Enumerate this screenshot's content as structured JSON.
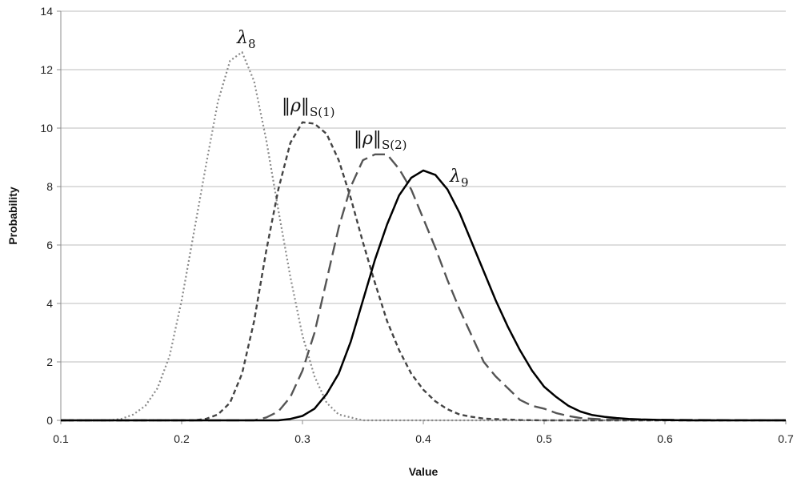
{
  "chart_data": {
    "type": "line",
    "title": "",
    "xlabel": "Value",
    "ylabel": "Probability",
    "xlim": [
      0.1,
      0.7
    ],
    "ylim": [
      0,
      14
    ],
    "x_ticks": [
      "0.1",
      "0.2",
      "0.3",
      "0.4",
      "0.5",
      "0.6",
      "0.7"
    ],
    "y_ticks": [
      "0",
      "2",
      "4",
      "6",
      "8",
      "10",
      "12",
      "14"
    ],
    "grid": "horizontal",
    "legend": "none",
    "series": [
      {
        "name": "λ8",
        "label_main": "λ",
        "label_sub": "8",
        "style": "dotted",
        "color": "#8a8a8a",
        "x": [
          0.1,
          0.14,
          0.15,
          0.16,
          0.17,
          0.18,
          0.19,
          0.2,
          0.21,
          0.22,
          0.23,
          0.24,
          0.25,
          0.26,
          0.27,
          0.28,
          0.29,
          0.3,
          0.31,
          0.32,
          0.33,
          0.35,
          0.7
        ],
        "y": [
          0,
          0,
          0.05,
          0.2,
          0.5,
          1.1,
          2.2,
          4.1,
          6.4,
          8.7,
          10.9,
          12.3,
          12.6,
          11.6,
          9.6,
          7.2,
          4.9,
          2.9,
          1.5,
          0.6,
          0.2,
          0,
          0
        ]
      },
      {
        "name": "‖ρ‖S(1)",
        "label_main": "‖ρ‖",
        "label_sub": "S(1)",
        "style": "short-dash",
        "color": "#444444",
        "x": [
          0.1,
          0.21,
          0.22,
          0.23,
          0.24,
          0.25,
          0.26,
          0.27,
          0.28,
          0.29,
          0.3,
          0.31,
          0.32,
          0.33,
          0.34,
          0.35,
          0.36,
          0.37,
          0.38,
          0.39,
          0.4,
          0.41,
          0.42,
          0.43,
          0.44,
          0.45,
          0.46,
          0.47,
          0.48,
          0.5,
          0.7
        ],
        "y": [
          0,
          0,
          0.05,
          0.2,
          0.6,
          1.6,
          3.4,
          5.8,
          7.9,
          9.5,
          10.2,
          10.15,
          9.8,
          8.9,
          7.6,
          6.1,
          4.7,
          3.4,
          2.4,
          1.6,
          1.05,
          0.65,
          0.38,
          0.2,
          0.12,
          0.06,
          0.04,
          0.03,
          0.01,
          0,
          0
        ]
      },
      {
        "name": "‖ρ‖S(2)",
        "label_main": "‖ρ‖",
        "label_sub": "S(2)",
        "style": "long-dash",
        "color": "#555555",
        "x": [
          0.1,
          0.26,
          0.27,
          0.28,
          0.29,
          0.3,
          0.31,
          0.32,
          0.33,
          0.34,
          0.35,
          0.36,
          0.37,
          0.38,
          0.39,
          0.4,
          0.41,
          0.42,
          0.43,
          0.44,
          0.45,
          0.46,
          0.47,
          0.48,
          0.49,
          0.5,
          0.51,
          0.52,
          0.53,
          0.55,
          0.7
        ],
        "y": [
          0,
          0,
          0.1,
          0.3,
          0.8,
          1.7,
          3.0,
          4.8,
          6.6,
          8.0,
          8.9,
          9.1,
          9.1,
          8.6,
          7.9,
          6.9,
          5.9,
          4.8,
          3.8,
          2.9,
          2.0,
          1.5,
          1.1,
          0.7,
          0.5,
          0.4,
          0.25,
          0.15,
          0.08,
          0.03,
          0
        ]
      },
      {
        "name": "λ9",
        "label_main": "λ",
        "label_sub": "9",
        "style": "solid",
        "color": "#000000",
        "x": [
          0.1,
          0.28,
          0.29,
          0.3,
          0.31,
          0.32,
          0.33,
          0.34,
          0.35,
          0.36,
          0.37,
          0.38,
          0.39,
          0.4,
          0.41,
          0.42,
          0.43,
          0.44,
          0.45,
          0.46,
          0.47,
          0.48,
          0.49,
          0.5,
          0.51,
          0.52,
          0.53,
          0.54,
          0.55,
          0.56,
          0.57,
          0.58,
          0.6,
          0.62,
          0.7
        ],
        "y": [
          0,
          0,
          0.05,
          0.15,
          0.4,
          0.9,
          1.6,
          2.7,
          4.1,
          5.5,
          6.7,
          7.7,
          8.3,
          8.55,
          8.4,
          7.9,
          7.1,
          6.1,
          5.1,
          4.1,
          3.2,
          2.4,
          1.7,
          1.15,
          0.8,
          0.5,
          0.3,
          0.18,
          0.12,
          0.08,
          0.05,
          0.03,
          0.01,
          0,
          0
        ]
      }
    ]
  }
}
